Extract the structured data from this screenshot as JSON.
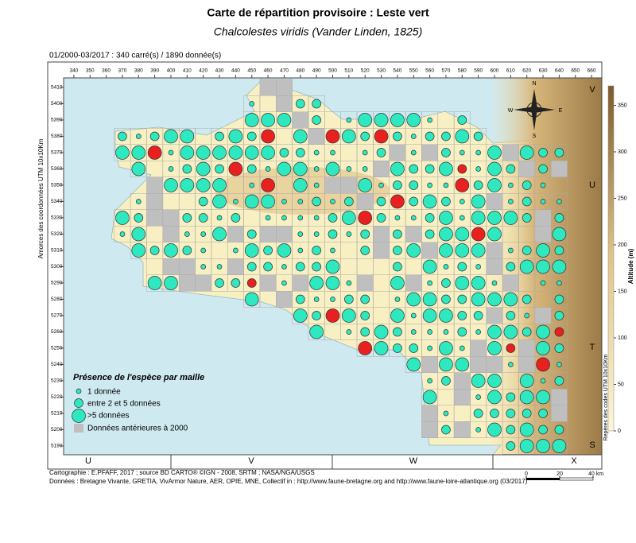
{
  "title": "Carte de répartition provisoire :  Leste vert",
  "subtitle": "Chalcolestes viridis (Vander Linden, 1825)",
  "period": "01/2000-03/2017 :  340 carré(s) / 1890 donnée(s)",
  "map": {
    "x_ticks": [
      340,
      350,
      360,
      370,
      380,
      390,
      400,
      410,
      420,
      430,
      440,
      450,
      460,
      470,
      480,
      490,
      500,
      510,
      520,
      530,
      540,
      550,
      560,
      570,
      580,
      590,
      600,
      610,
      620,
      630,
      640,
      650,
      660
    ],
    "y_ticks": [
      5410,
      5400,
      5390,
      5380,
      5370,
      5360,
      5350,
      5340,
      5330,
      5320,
      5310,
      5300,
      5290,
      5280,
      5270,
      5260,
      5250,
      5240,
      5230,
      5220,
      5210,
      5200,
      5190
    ],
    "y_axis_label": "Amorces des coordonnées UTM 10x10Km",
    "right_axis_label": "Repères des codes UTM 10x10Km",
    "bottom_zones": [
      "U",
      "V",
      "W",
      "X"
    ],
    "right_zones": [
      "V",
      "U",
      "T",
      "S"
    ],
    "compass": [
      "N",
      "S",
      "E",
      "W"
    ]
  },
  "legend": {
    "title": "Présence de l'espèce par maille",
    "items": [
      "1 donnée",
      "entre 2 et 5 données",
      ">5 données",
      "Données antérieures à 2000"
    ]
  },
  "colorbar": {
    "label": "Altitude (m)",
    "ticks": [
      0,
      50,
      100,
      150,
      200,
      250,
      300,
      350
    ]
  },
  "scale_bar": {
    "ticks": [
      0,
      20,
      {
        "value": 40,
        "label": "40 km"
      }
    ]
  },
  "credits": [
    "Cartographie : E.PFAFF, 2017 ; source BD CARTO® ©IGN - 2008, SRTM ; NASA/NGA/USGS",
    "Données : Bretagne Vivante, GRETIA, VivArmor Nature, AER, OPIE, MNE, Collectif in : http://www.faune-bretagne.org and http://www.faune-loire-atlantique.org (03/2017)"
  ]
}
